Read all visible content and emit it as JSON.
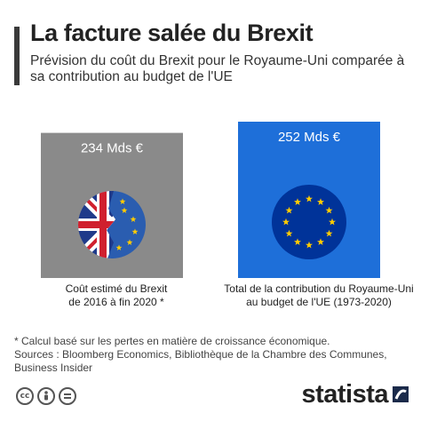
{
  "header": {
    "title": "La facture salée du Brexit",
    "subtitle": "Prévision du coût du Brexit pour le Royaume-Uni comparée à sa contribution au budget de l'UE"
  },
  "chart_data": {
    "type": "bar",
    "title": "La facture salée du Brexit",
    "subtitle": "Prévision du coût du Brexit pour le Royaume-Uni comparée à sa contribution au budget de l'UE",
    "unit": "Mds €",
    "categories": [
      "Coût estimé du Brexit de 2016 à fin 2020 *",
      "Total de la contribution du Royaume-Uni au budget de l'UE (1973-2020)"
    ],
    "category_lines": [
      [
        "Coût estimé du Brexit",
        "de 2016 à fin 2020 *"
      ],
      [
        "Total de la contribution du Royaume-Uni",
        "au budget de l'UE (1973-2020)"
      ]
    ],
    "values": [
      234,
      252
    ],
    "value_labels": [
      "234 Mds €",
      "252 Mds €"
    ],
    "colors": [
      "#8a8a8a",
      "#1e6fd9"
    ],
    "icons": [
      "broken-uk-eu-flag-icon",
      "eu-flag-icon"
    ],
    "ylim": [
      0,
      252
    ],
    "grid": false,
    "legend": "none"
  },
  "footer": {
    "note": "* Calcul basé sur les pertes en matière de croissance économique.",
    "sources": "Sources : Bloomberg Economics, Bibliothèque de la Chambre des Communes, Business Insider",
    "cc_icons": [
      "cc-icon",
      "by-icon",
      "equal-icon"
    ],
    "logo": "statista"
  }
}
